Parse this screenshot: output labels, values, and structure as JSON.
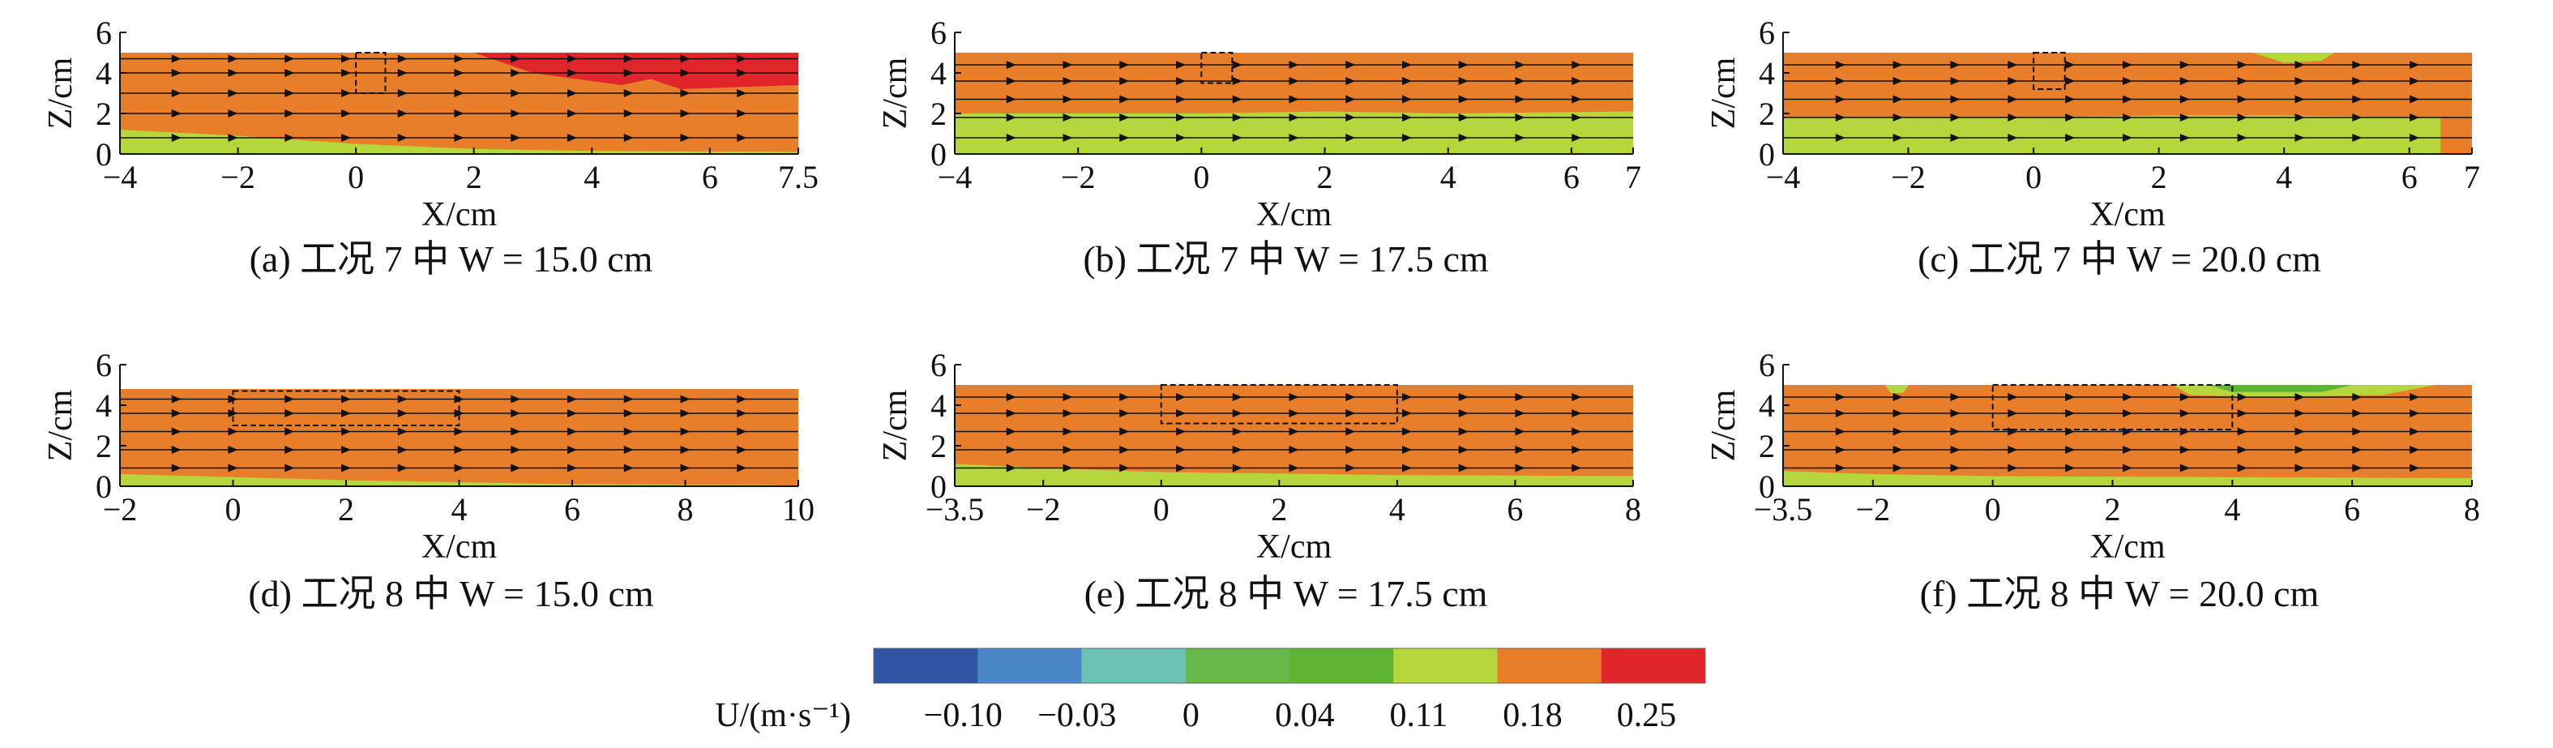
{
  "colorbar": {
    "label": "U/(m·s⁻¹)",
    "tick_labels": [
      "−0.10",
      "−0.03",
      "0",
      "0.04",
      "0.11",
      "0.18",
      "0.25"
    ],
    "colors": [
      "#2f55a4",
      "#4a86c8",
      "#6cc3b3",
      "#66b848",
      "#5db531",
      "#b6d73c",
      "#e87d2a",
      "#e0262b"
    ]
  },
  "chart_data": [
    {
      "type": "heatmap",
      "caption": "(a) 工况 7 中 W = 15.0 cm",
      "xlabel": "X/cm",
      "ylabel": "Z/cm",
      "xlim": [
        -4,
        7.5
      ],
      "ylim": [
        0,
        6
      ],
      "xticks": [
        -4,
        -2,
        0,
        2,
        4,
        6,
        7.5
      ],
      "yticks": [
        0,
        2,
        4,
        6
      ],
      "xtick_labels": [
        "−4",
        "−2",
        "0",
        "2",
        "4",
        "6",
        "7.5"
      ],
      "ytick_labels": [
        "0",
        "2",
        "4",
        "6"
      ],
      "surface_z": 5.0,
      "dominant_color": "#e87d2a",
      "regions": [
        {
          "color": "#b6d73c",
          "z_points": [
            [
              -4,
              1.2
            ],
            [
              -2,
              0.9
            ],
            [
              0,
              0.5
            ],
            [
              2,
              0.25
            ],
            [
              4,
              0.15
            ],
            [
              7.5,
              0.1
            ]
          ]
        },
        {
          "color": "#e0262b",
          "top_band": true,
          "x_from": 2,
          "x_to": 7.5,
          "z_points": [
            [
              2,
              5.0
            ],
            [
              3,
              4.0
            ],
            [
              4.5,
              3.4
            ],
            [
              5,
              3.7
            ],
            [
              5.5,
              3.2
            ],
            [
              7.5,
              3.4
            ]
          ]
        }
      ],
      "streamlines_z": [
        0.8,
        2.0,
        3.0,
        4.0,
        4.7
      ],
      "structure_box": {
        "x": [
          0,
          0.5
        ],
        "z": [
          3,
          5
        ]
      }
    },
    {
      "type": "heatmap",
      "caption": "(b) 工况 7 中 W = 17.5 cm",
      "xlabel": "X/cm",
      "ylabel": "Z/cm",
      "xlim": [
        -4,
        7
      ],
      "ylim": [
        0,
        6
      ],
      "xticks": [
        -4,
        -2,
        0,
        2,
        4,
        6,
        7
      ],
      "yticks": [
        0,
        2,
        4,
        6
      ],
      "xtick_labels": [
        "−4",
        "−2",
        "0",
        "2",
        "4",
        "6",
        "7"
      ],
      "ytick_labels": [
        "0",
        "2",
        "4",
        "6"
      ],
      "surface_z": 5.0,
      "dominant_color": "#e87d2a",
      "regions": [
        {
          "color": "#b6d73c",
          "z_points": [
            [
              -4,
              2.0
            ],
            [
              0,
              2.0
            ],
            [
              2,
              2.1
            ],
            [
              4,
              2.0
            ],
            [
              7,
              2.1
            ]
          ]
        }
      ],
      "streamlines_z": [
        0.8,
        1.8,
        2.7,
        3.6,
        4.4
      ],
      "structure_box": {
        "x": [
          0,
          0.5
        ],
        "z": [
          3.5,
          5
        ]
      }
    },
    {
      "type": "heatmap",
      "caption": "(c) 工况 7 中 W = 20.0 cm",
      "xlabel": "X/cm",
      "ylabel": "Z/cm",
      "xlim": [
        -4,
        7
      ],
      "ylim": [
        0,
        6
      ],
      "xticks": [
        -4,
        -2,
        0,
        2,
        4,
        6,
        7
      ],
      "yticks": [
        0,
        2,
        4,
        6
      ],
      "xtick_labels": [
        "−4",
        "−2",
        "0",
        "2",
        "4",
        "6",
        "7"
      ],
      "ytick_labels": [
        "0",
        "2",
        "4",
        "6"
      ],
      "surface_z": 5.0,
      "dominant_color": "#e87d2a",
      "regions": [
        {
          "color": "#b6d73c",
          "z_points": [
            [
              -4,
              1.8
            ],
            [
              0,
              1.8
            ],
            [
              2,
              1.9
            ],
            [
              4,
              1.9
            ],
            [
              6.5,
              1.8
            ]
          ]
        },
        {
          "color": "#b6d73c",
          "top_band": true,
          "x_from": 3.5,
          "x_to": 4.8,
          "z_points": [
            [
              3.5,
              5.0
            ],
            [
              4.0,
              4.5
            ],
            [
              4.6,
              4.6
            ],
            [
              4.8,
              5.0
            ]
          ]
        }
      ],
      "streamlines_z": [
        0.8,
        1.8,
        2.7,
        3.6,
        4.4
      ],
      "structure_box": {
        "x": [
          0,
          0.5
        ],
        "z": [
          3.2,
          5
        ]
      }
    },
    {
      "type": "heatmap",
      "caption": "(d) 工况 8 中 W = 15.0 cm",
      "xlabel": "X/cm",
      "ylabel": "Z/cm",
      "xlim": [
        -2,
        10
      ],
      "ylim": [
        0,
        6
      ],
      "xticks": [
        -2,
        0,
        2,
        4,
        6,
        8,
        10
      ],
      "yticks": [
        0,
        2,
        4,
        6
      ],
      "xtick_labels": [
        "−2",
        "0",
        "2",
        "4",
        "6",
        "8",
        "10"
      ],
      "ytick_labels": [
        "0",
        "2",
        "4",
        "6"
      ],
      "surface_z": 4.8,
      "dominant_color": "#e87d2a",
      "regions": [
        {
          "color": "#b6d73c",
          "z_points": [
            [
              -2,
              0.6
            ],
            [
              0,
              0.45
            ],
            [
              2,
              0.3
            ],
            [
              4,
              0.2
            ],
            [
              6,
              0.1
            ],
            [
              9.7,
              0.05
            ]
          ]
        }
      ],
      "streamlines_z": [
        0.9,
        1.8,
        2.7,
        3.6,
        4.3
      ],
      "structure_box": {
        "x": [
          0,
          4
        ],
        "z": [
          3,
          4.7
        ]
      }
    },
    {
      "type": "heatmap",
      "caption": "(e) 工况 8 中 W = 17.5 cm",
      "xlabel": "X/cm",
      "ylabel": "Z/cm",
      "xlim": [
        -3.5,
        8
      ],
      "ylim": [
        0,
        6
      ],
      "xticks": [
        -3.5,
        -2,
        0,
        2,
        4,
        6,
        8
      ],
      "yticks": [
        0,
        2,
        4,
        6
      ],
      "xtick_labels": [
        "−3.5",
        "−2",
        "0",
        "2",
        "4",
        "6",
        "8"
      ],
      "ytick_labels": [
        "0",
        "2",
        "4",
        "6"
      ],
      "surface_z": 5.0,
      "dominant_color": "#e87d2a",
      "regions": [
        {
          "color": "#b6d73c",
          "z_points": [
            [
              -3.5,
              1.1
            ],
            [
              -2,
              0.9
            ],
            [
              0,
              0.7
            ],
            [
              4,
              0.55
            ],
            [
              8,
              0.5
            ]
          ]
        }
      ],
      "streamlines_z": [
        0.9,
        1.8,
        2.7,
        3.6,
        4.4
      ],
      "structure_box": {
        "x": [
          0,
          4
        ],
        "z": [
          3.1,
          5
        ]
      }
    },
    {
      "type": "heatmap",
      "caption": "(f) 工况 8 中 W = 20.0 cm",
      "xlabel": "X/cm",
      "ylabel": "Z/cm",
      "xlim": [
        -3.5,
        8
      ],
      "ylim": [
        0,
        6
      ],
      "xticks": [
        -3.5,
        -2,
        0,
        2,
        4,
        6,
        8
      ],
      "yticks": [
        0,
        2,
        4,
        6
      ],
      "xtick_labels": [
        "−3.5",
        "−2",
        "0",
        "2",
        "4",
        "6",
        "8"
      ],
      "ytick_labels": [
        "0",
        "2",
        "4",
        "6"
      ],
      "surface_z": 5.0,
      "dominant_color": "#e87d2a",
      "regions": [
        {
          "color": "#b6d73c",
          "z_points": [
            [
              -3.5,
              0.75
            ],
            [
              -2,
              0.6
            ],
            [
              0,
              0.5
            ],
            [
              4,
              0.45
            ],
            [
              8,
              0.4
            ]
          ]
        },
        {
          "color": "#b6d73c",
          "top_band": true,
          "x_from": -1.8,
          "x_to": -1.4,
          "z_points": [
            [
              -1.8,
              5.0
            ],
            [
              -1.7,
              4.6
            ],
            [
              -1.5,
              4.6
            ],
            [
              -1.4,
              5.0
            ]
          ]
        },
        {
          "color": "#b6d73c",
          "top_band": true,
          "x_from": 3.0,
          "x_to": 7.4,
          "z_points": [
            [
              3.0,
              5.0
            ],
            [
              3.3,
              4.5
            ],
            [
              4.5,
              4.4
            ],
            [
              6.5,
              4.5
            ],
            [
              7.4,
              5.0
            ]
          ]
        },
        {
          "color": "#5db531",
          "top_band": true,
          "x_from": 3.6,
          "x_to": 6.0,
          "z_points": [
            [
              3.6,
              5.0
            ],
            [
              4.0,
              4.65
            ],
            [
              5.5,
              4.65
            ],
            [
              6.0,
              5.0
            ]
          ]
        }
      ],
      "streamlines_z": [
        0.9,
        1.8,
        2.7,
        3.6,
        4.4
      ],
      "structure_box": {
        "x": [
          0,
          4
        ],
        "z": [
          2.8,
          5
        ]
      }
    }
  ]
}
